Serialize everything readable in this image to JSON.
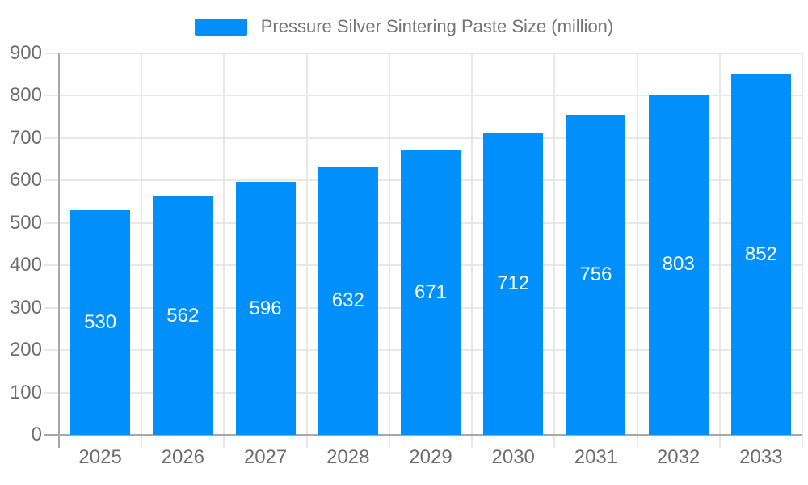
{
  "chart_data": {
    "type": "bar",
    "categories": [
      "2025",
      "2026",
      "2027",
      "2028",
      "2029",
      "2030",
      "2031",
      "2032",
      "2033"
    ],
    "series": [
      {
        "name": "Pressure Silver Sintering Paste Size (million)",
        "values": [
          530,
          562,
          596,
          632,
          671,
          712,
          756,
          803,
          852
        ]
      }
    ],
    "title": "",
    "xlabel": "",
    "ylabel": "",
    "ylim": [
      0,
      900
    ],
    "ytick_step": 100,
    "y_tick_labels": [
      "0",
      "100",
      "200",
      "300",
      "400",
      "500",
      "600",
      "700",
      "800",
      "900"
    ],
    "grid": "on",
    "legend_position": "top",
    "colors": {
      "bar": "#008FFB",
      "grid": "#e8e8e8",
      "axis_line": "#a8a8a8",
      "axis_label": "#6e6e6e",
      "legend_text": "#757575",
      "data_label": "#ffffff",
      "background": "#ffffff"
    }
  }
}
